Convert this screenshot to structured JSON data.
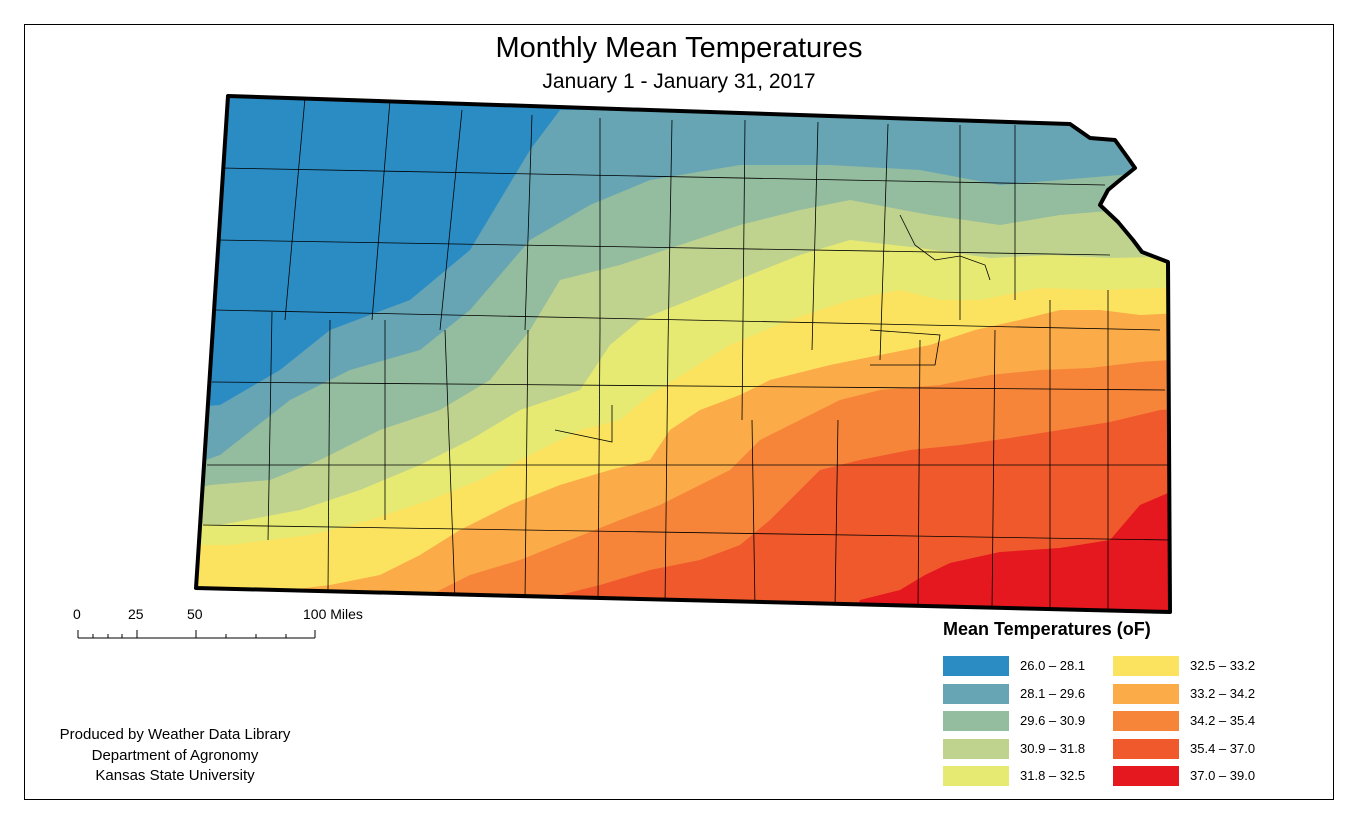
{
  "title": "Monthly Mean Temperatures",
  "subtitle": "January 1 - January 31, 2017",
  "scale_bar": {
    "labels": [
      "0",
      "25",
      "50",
      "100 Miles"
    ],
    "miles": [
      0,
      25,
      50,
      100
    ]
  },
  "credits": [
    "Produced by Weather Data Library",
    "Department of Agronomy",
    "Kansas State University"
  ],
  "legend": {
    "title": "Mean Temperatures (oF)",
    "items": [
      {
        "label": "26.0 – 28.1",
        "color": "#2b8cc4"
      },
      {
        "label": "28.1 – 29.6",
        "color": "#67a5b5"
      },
      {
        "label": "29.6 – 30.9",
        "color": "#94bc9e"
      },
      {
        "label": "30.9 – 31.8",
        "color": "#c0d38e"
      },
      {
        "label": "31.8 – 32.5",
        "color": "#e6ea73"
      },
      {
        "label": "32.5 – 33.2",
        "color": "#fbe25f"
      },
      {
        "label": "33.2 – 34.2",
        "color": "#fbab47"
      },
      {
        "label": "34.2 – 35.4",
        "color": "#f6853a"
      },
      {
        "label": "35.4 – 37.0",
        "color": "#f0592c"
      },
      {
        "label": "37.0 – 39.0",
        "color": "#e5171f"
      }
    ]
  }
}
